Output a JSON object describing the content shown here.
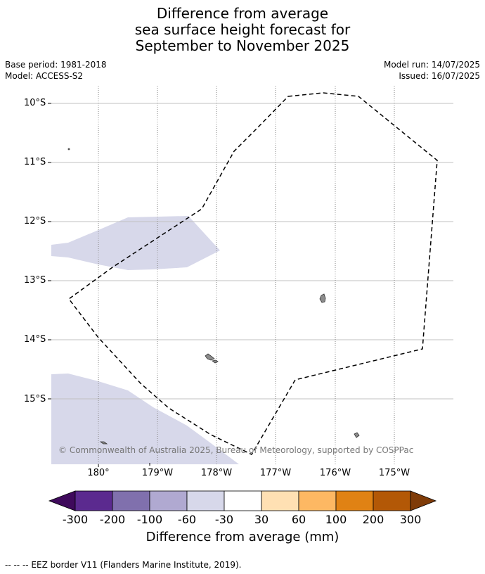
{
  "title": {
    "line1": "Difference from average",
    "line2": "sea surface height forecast for",
    "line3": "September to November 2025"
  },
  "meta": {
    "base_period": "Base period: 1981-2018",
    "model": "Model: ACCESS-S2",
    "model_run": "Model run: 14/07/2025",
    "issued": "Issued: 16/07/2025"
  },
  "axes": {
    "lat_labels": [
      "10°S",
      "11°S",
      "12°S",
      "13°S",
      "14°S",
      "15°S"
    ],
    "lon_labels": [
      "180°",
      "179°W",
      "178°W",
      "177°W",
      "176°W",
      "175°W"
    ]
  },
  "copyright": "© Commonwealth of Australia 2025, Bureau of Meteorology, supported by COSPPac",
  "colorbar": {
    "ticks": [
      "-300",
      "-200",
      "-100",
      "-60",
      "-30",
      "30",
      "60",
      "100",
      "200",
      "300"
    ],
    "title": "Difference from average (mm)",
    "colors": [
      "#3f0a5c",
      "#5b2a8f",
      "#8070ad",
      "#b0a9d1",
      "#d7d8ea",
      "#ffffff",
      "#ffe0b3",
      "#fdb863",
      "#e08214",
      "#b35806",
      "#7f3b08"
    ]
  },
  "footer": "-- -- -- EEZ border V11 (Flanders Marine Institute, 2019).",
  "styles": {
    "anomaly_fill": "#d7d8ea",
    "land_fill": "#8c8c8c"
  }
}
